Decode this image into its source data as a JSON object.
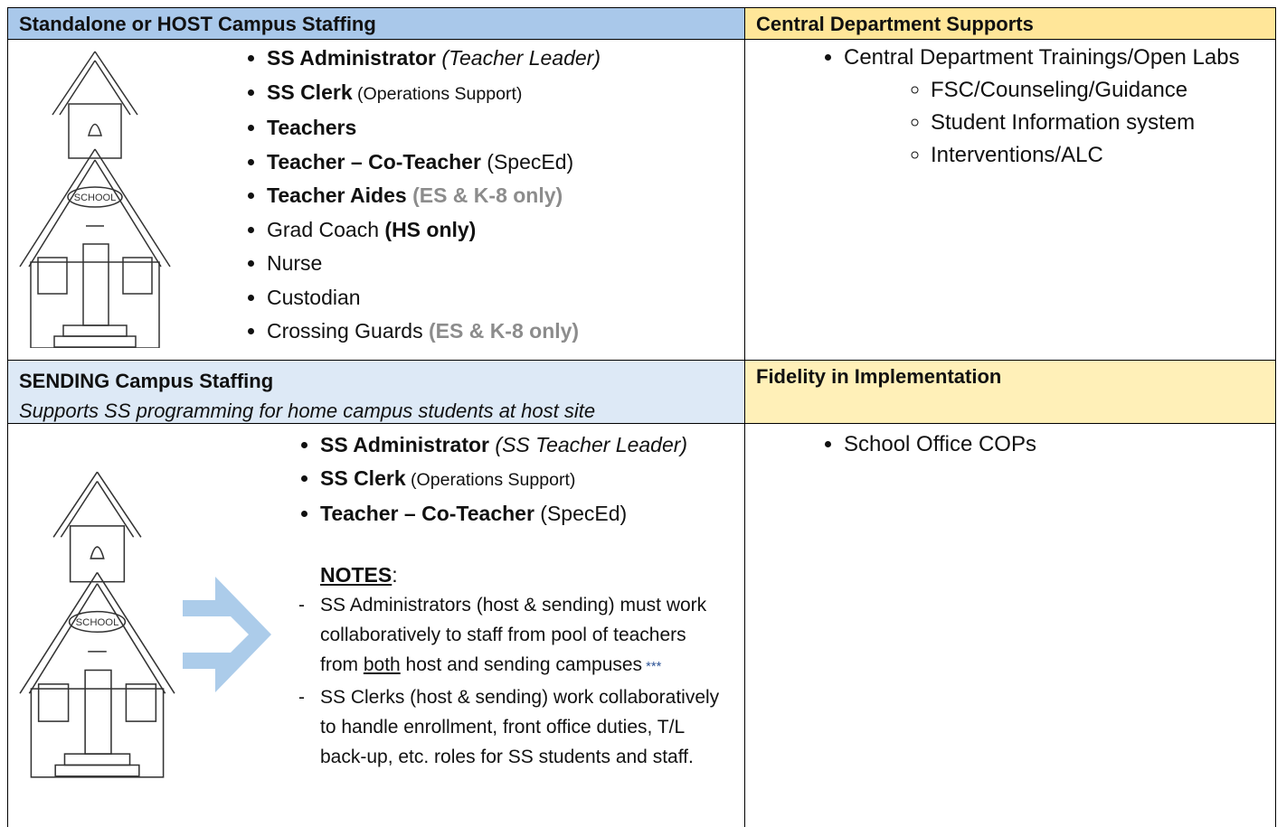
{
  "table": {
    "header_left": "Standalone or HOST Campus Staffing",
    "header_right": "Central Department Supports",
    "icon_label": "SCHOOL",
    "host_staff": [
      [
        {
          "text": "SS Administrator",
          "style": "bold"
        },
        {
          "text": " (Teacher Leader)",
          "style": "italic"
        }
      ],
      [
        {
          "text": "SS Clerk",
          "style": "bold"
        },
        {
          "text": " (Operations Support)",
          "style": "small"
        }
      ],
      [
        {
          "text": "Teachers",
          "style": "bold"
        }
      ],
      [
        {
          "text": "Teacher – Co-Teacher",
          "style": "bold"
        },
        {
          "text": " (SpecEd)",
          "style": "plain"
        }
      ],
      [
        {
          "text": "Teacher Aides",
          "style": "bold"
        },
        {
          "text": " (ES & K-8 only)",
          "style": "gray"
        }
      ],
      [
        {
          "text": "Grad Coach",
          "style": "plain"
        },
        {
          "text": " (HS only)",
          "style": "bold"
        }
      ],
      [
        {
          "text": "Nurse",
          "style": "plain"
        }
      ],
      [
        {
          "text": "Custodian",
          "style": "plain"
        }
      ],
      [
        {
          "text": "Crossing Guards",
          "style": "plain"
        },
        {
          "text": " (ES & K-8 only)",
          "style": "gray"
        }
      ]
    ],
    "central_supports": [
      {
        "text": "Central Department Trainings/Open Labs",
        "subitems": [
          "FSC/Counseling/Guidance",
          "Student Information system",
          "Interventions/ALC"
        ]
      }
    ],
    "sending_header": "SENDING Campus Staffing",
    "sending_subheader": "Supports SS programming for home campus students at host site",
    "fidelity_header": "Fidelity in Implementation",
    "sending_staff": [
      [
        {
          "text": "SS Administrator",
          "style": "bold"
        },
        {
          "text": " (SS Teacher Leader)",
          "style": "italic"
        }
      ],
      [
        {
          "text": "SS Clerk",
          "style": "bold"
        },
        {
          "text": " (Operations Support)",
          "style": "small"
        }
      ],
      [
        {
          "text": "Teacher – Co-Teacher",
          "style": "bold"
        },
        {
          "text": " (SpecEd)",
          "style": "plain"
        }
      ]
    ],
    "notes_title": [
      {
        "text": "NOTES",
        "style": "bold-underline"
      },
      {
        "text": ":",
        "style": "plain"
      }
    ],
    "notes": [
      [
        {
          "text": "SS Administrators (host & sending) must work collaboratively to staff from pool of teachers from ",
          "style": "plain"
        },
        {
          "text": "both",
          "style": "underline"
        },
        {
          "text": " host and sending campuses",
          "style": "plain"
        },
        {
          "text": " ***",
          "style": "star"
        }
      ],
      [
        {
          "text": "SS Clerks (host & sending) work collaboratively to handle enrollment, front office duties, T/L back-up, etc. roles for SS students and staff.",
          "style": "plain"
        }
      ]
    ],
    "fidelity_items": [
      "School Office COPs"
    ]
  }
}
